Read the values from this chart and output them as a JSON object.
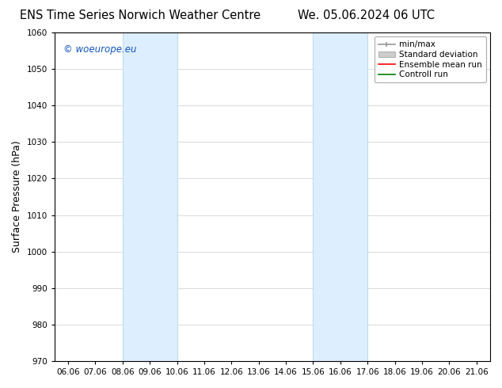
{
  "title_left": "ENS Time Series Norwich Weather Centre",
  "title_right": "We. 05.06.2024 06 UTC",
  "ylabel": "Surface Pressure (hPa)",
  "xlim": [
    5.5,
    21.5
  ],
  "ylim": [
    970,
    1060
  ],
  "yticks": [
    970,
    980,
    990,
    1000,
    1010,
    1020,
    1030,
    1040,
    1050,
    1060
  ],
  "xtick_labels": [
    "06.06",
    "07.06",
    "08.06",
    "09.06",
    "10.06",
    "11.06",
    "12.06",
    "13.06",
    "14.06",
    "15.06",
    "16.06",
    "17.06",
    "18.06",
    "19.06",
    "20.06",
    "21.06"
  ],
  "xtick_positions": [
    6,
    7,
    8,
    9,
    10,
    11,
    12,
    13,
    14,
    15,
    16,
    17,
    18,
    19,
    20,
    21
  ],
  "shaded_regions": [
    {
      "x_start": 8,
      "x_end": 10
    },
    {
      "x_start": 15,
      "x_end": 17
    }
  ],
  "shaded_color": "#ddeeff",
  "shaded_edge_color": "#bbddee",
  "watermark_text": "© woeurope.eu",
  "watermark_color": "#1155bb",
  "bg_color": "#ffffff",
  "grid_color": "#cccccc",
  "title_fontsize": 10.5,
  "tick_label_fontsize": 7.5,
  "ylabel_fontsize": 9
}
